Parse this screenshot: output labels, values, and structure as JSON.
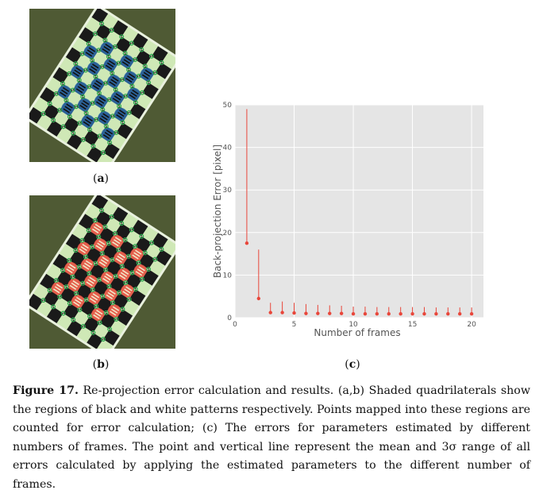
{
  "figure": {
    "label": "Figure 17.",
    "caption_text": " Re-projection error calculation and results. (a,b) Shaded quadrilaterals show the regions of black and white patterns respectively. Points mapped into these regions are counted for error calculation; (c) The errors for parameters estimated by different numbers of frames. The point and vertical line represent the mean and 3σ range of all errors calculated by applying the estimated parameters to the different number of frames."
  },
  "panels": {
    "a": "a",
    "b": "b",
    "c": "c"
  },
  "colors": {
    "chart_bg": "#e5e5e5",
    "series": "#e8463a",
    "grid": "#ffffff",
    "photo_bg": "#4f5a34",
    "shade_a": "#2f6fae",
    "shade_b": "#e8463a"
  },
  "chart_data": {
    "type": "scatter",
    "xlabel": "Number of frames",
    "ylabel": "Back-projection Error  [pixel]",
    "xlim": [
      0,
      21
    ],
    "ylim": [
      0,
      50
    ],
    "xticks": [
      0,
      5,
      10,
      15,
      20
    ],
    "yticks": [
      0,
      10,
      20,
      30,
      40,
      50
    ],
    "grid": true,
    "series": [
      {
        "x": [
          1,
          2,
          3,
          4,
          5,
          6,
          7,
          8,
          9,
          10,
          11,
          12,
          13,
          14,
          15,
          16,
          17,
          18,
          19,
          20
        ],
        "mean": [
          17.5,
          4.5,
          1.2,
          1.2,
          1.1,
          1.0,
          1.0,
          1.0,
          1.0,
          0.9,
          0.9,
          0.9,
          0.9,
          0.9,
          0.9,
          0.9,
          0.9,
          0.9,
          0.9,
          0.9
        ],
        "upper": [
          49,
          16,
          3.5,
          3.8,
          3.5,
          3.2,
          3.0,
          2.9,
          2.8,
          2.6,
          2.6,
          2.5,
          2.5,
          2.5,
          2.5,
          2.5,
          2.4,
          2.4,
          2.4,
          2.4
        ]
      }
    ]
  }
}
